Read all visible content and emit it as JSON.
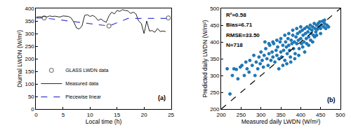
{
  "chart_data": [
    {
      "type": "line",
      "x_label": "Local time (h)",
      "y_label": "Diurnal LWDN (W/m²)",
      "annotations": [
        "(a)"
      ],
      "xlim": [
        0,
        25
      ],
      "xticks": [
        0,
        5,
        10,
        15,
        20,
        25
      ],
      "ylim": [
        0,
        400
      ],
      "yticks": [
        0,
        50,
        100,
        150,
        200,
        250,
        300,
        350,
        400
      ],
      "grid": false,
      "legend": "lower left",
      "series": [
        {
          "name": "GLASS LWDN data",
          "type": "scatter",
          "marker": "open circle",
          "color": "#555555",
          "x": [
            1.5,
            13.5,
            24.5
          ],
          "values": [
            362,
            330,
            362
          ]
        },
        {
          "name": "Measured data",
          "type": "line",
          "line_style": "solid",
          "color": "#222222",
          "x": [
            0,
            0.5,
            1,
            1.5,
            2,
            2.5,
            3,
            3.5,
            4,
            4.5,
            5,
            5.5,
            6,
            6.5,
            7,
            7.5,
            8,
            8.5,
            9,
            9.5,
            10,
            10.5,
            11,
            11.5,
            12,
            12.5,
            13,
            13.5,
            14,
            14.5,
            15,
            15.5,
            16,
            16.5,
            17,
            17.5,
            18,
            18.5,
            19,
            19.5,
            20,
            20.5,
            21,
            21.5,
            22,
            22.5,
            23,
            23.5,
            24
          ],
          "values": [
            365,
            367,
            366,
            368,
            366,
            370,
            368,
            369,
            367,
            366,
            370,
            368,
            368,
            362,
            345,
            322,
            318,
            330,
            372,
            375,
            368,
            372,
            365,
            352,
            358,
            350,
            345,
            370,
            385,
            378,
            392,
            388,
            395,
            392,
            390,
            380,
            385,
            378,
            350,
            340,
            300,
            350,
            310,
            312,
            305,
            320,
            308,
            310,
            308
          ]
        },
        {
          "name": "Piecewise linear",
          "type": "line",
          "line_style": "dashed",
          "color": "#3f3fd0",
          "x": [
            0,
            1.5,
            13.5,
            17,
            24.5
          ],
          "values": [
            362,
            362,
            330,
            360,
            360
          ]
        }
      ]
    },
    {
      "type": "scatter",
      "x_label": "Measured daily LWDN (W/m²)",
      "y_label": "Predicted daily LWDN (W/m²)",
      "annotations": [
        "(b)",
        "R²=0.58",
        "Bias=6.71",
        "RMSE=33.50",
        "N=718"
      ],
      "xlim": [
        200,
        500
      ],
      "xticks": [
        200,
        250,
        300,
        350,
        400,
        450,
        500
      ],
      "ylim": [
        200,
        500
      ],
      "yticks": [
        200,
        250,
        300,
        350,
        400,
        450,
        500
      ],
      "grid": false,
      "series": [
        {
          "type": "scatter",
          "marker": "circle",
          "color": "#1f77b4",
          "x": [
            215,
            222,
            228,
            232,
            238,
            242,
            248,
            252,
            258,
            262,
            265,
            270,
            272,
            278,
            282,
            285,
            288,
            292,
            295,
            298,
            300,
            303,
            306,
            308,
            312,
            315,
            318,
            320,
            322,
            325,
            328,
            330,
            332,
            335,
            338,
            340,
            342,
            345,
            348,
            350,
            352,
            355,
            357,
            360,
            362,
            364,
            366,
            368,
            370,
            372,
            374,
            376,
            378,
            380,
            382,
            384,
            386,
            388,
            390,
            392,
            394,
            396,
            398,
            400,
            402,
            404,
            406,
            408,
            410,
            412,
            414,
            416,
            418,
            420,
            422,
            424,
            426,
            428,
            430,
            432,
            434,
            436,
            438,
            440,
            442,
            444,
            446,
            448,
            450,
            452,
            455,
            458,
            460,
            463,
            466,
            470,
            395,
            385,
            405,
            415,
            425,
            435,
            375,
            365,
            345,
            355,
            410,
            420,
            430,
            440,
            450,
            460,
            400,
            390,
            380,
            370,
            360,
            350,
            340,
            330,
            320,
            310
          ],
          "values": [
            320,
            245,
            300,
            320,
            318,
            290,
            325,
            330,
            300,
            340,
            320,
            310,
            345,
            330,
            360,
            300,
            340,
            320,
            355,
            335,
            370,
            345,
            325,
            360,
            380,
            350,
            330,
            365,
            390,
            345,
            370,
            355,
            395,
            340,
            375,
            360,
            385,
            350,
            400,
            370,
            355,
            390,
            375,
            345,
            400,
            385,
            365,
            410,
            390,
            375,
            355,
            405,
            395,
            420,
            380,
            400,
            365,
            415,
            395,
            425,
            405,
            380,
            430,
            410,
            395,
            435,
            420,
            400,
            440,
            425,
            410,
            445,
            430,
            415,
            440,
            450,
            425,
            435,
            445,
            420,
            455,
            440,
            430,
            450,
            438,
            455,
            445,
            460,
            440,
            450,
            462,
            445,
            455,
            440,
            450,
            445,
            360,
            350,
            385,
            395,
            405,
            415,
            340,
            335,
            320,
            330,
            370,
            390,
            400,
            420,
            425,
            465,
            445,
            440,
            435,
            425,
            420,
            410,
            405,
            400,
            395,
            400
          ]
        },
        {
          "type": "line",
          "line_style": "dashed",
          "color": "#000000",
          "x": [
            200,
            500
          ],
          "values": [
            200,
            500
          ]
        }
      ]
    }
  ]
}
